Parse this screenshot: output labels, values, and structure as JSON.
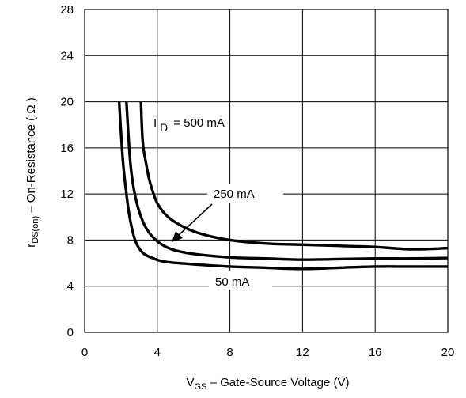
{
  "chart_data": {
    "type": "line",
    "xlabel": {
      "main": "V",
      "sub": "GS",
      "rest": " – Gate-Source Voltage (V)"
    },
    "ylabel": {
      "main": "r",
      "sub": "DS(on)",
      "rest": " – On-Resistance ( Ω )"
    },
    "xlim": [
      0,
      20
    ],
    "ylim": [
      0,
      28
    ],
    "xticks": [
      "0",
      "4",
      "8",
      "12",
      "16",
      "20"
    ],
    "yticks": [
      "0",
      "4",
      "8",
      "12",
      "16",
      "20",
      "24",
      "28"
    ],
    "grid": true,
    "annotations": {
      "id_prefix": "I",
      "id_sub": "D",
      "id_value": "= 500 mA",
      "mid": "250 mA",
      "low": "50 mA"
    },
    "series": [
      {
        "name": "",
        "x": [
          3.1,
          3.2,
          3.4,
          3.6,
          4.0,
          4.6,
          5.5,
          6.5,
          8,
          10,
          12,
          14,
          16,
          18,
          20
        ],
        "values": [
          20,
          16.5,
          14.5,
          13.0,
          11.2,
          10.0,
          9.1,
          8.5,
          8.0,
          7.7,
          7.6,
          7.5,
          7.4,
          7.2,
          7.3
        ]
      },
      {
        "name": "",
        "x": [
          2.3,
          2.5,
          2.7,
          3.0,
          3.4,
          4.0,
          4.8,
          6,
          8,
          10,
          12,
          14,
          16,
          18,
          20
        ],
        "values": [
          20,
          15,
          12.5,
          10.5,
          9.0,
          7.9,
          7.2,
          6.8,
          6.5,
          6.4,
          6.3,
          6.35,
          6.4,
          6.4,
          6.45
        ]
      },
      {
        "name": "",
        "x": [
          1.9,
          2.1,
          2.3,
          2.5,
          2.8,
          3.2,
          3.8,
          4.5,
          6,
          8,
          10,
          12,
          14,
          16,
          18,
          20
        ],
        "values": [
          20,
          15,
          12,
          9.8,
          7.9,
          6.9,
          6.4,
          6.1,
          5.9,
          5.7,
          5.6,
          5.5,
          5.6,
          5.7,
          5.7,
          5.7
        ]
      }
    ]
  }
}
